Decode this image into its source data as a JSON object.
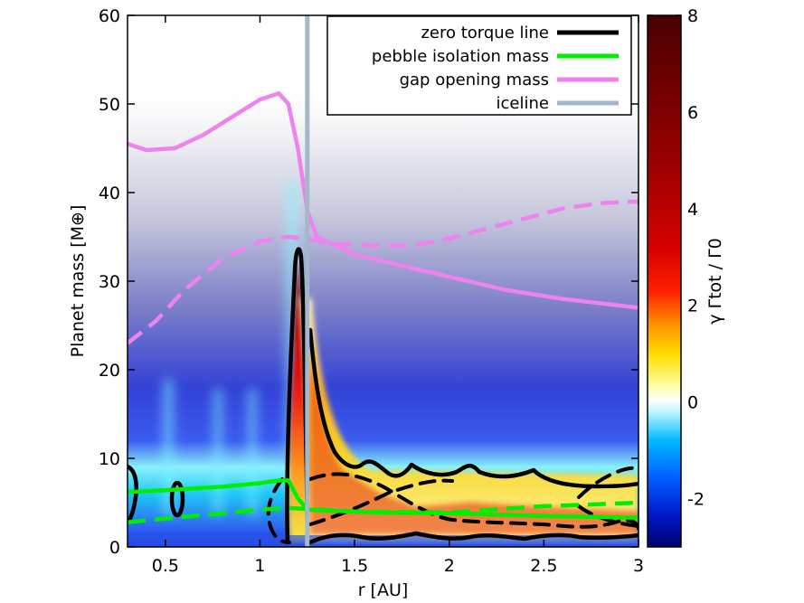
{
  "chart_data": {
    "type": "heatmap",
    "xlabel": "r [AU]",
    "ylabel": "Planet mass [M⊕]",
    "colorbar_label": "γ Γtot / Γ0",
    "xlim": [
      0.3,
      3.0
    ],
    "ylim": [
      0,
      60
    ],
    "colorbar_range": [
      -3,
      8
    ],
    "x_ticks": [
      0.5,
      1,
      1.5,
      2,
      2.5,
      3
    ],
    "x_tick_labels": [
      "0.5",
      "1",
      "1.5",
      "2",
      "2.5",
      "3"
    ],
    "y_ticks": [
      0,
      10,
      20,
      30,
      40,
      50,
      60
    ],
    "y_tick_labels": [
      "0",
      "10",
      "20",
      "30",
      "40",
      "50",
      "60"
    ],
    "colorbar_ticks": [
      -2,
      0,
      2,
      4,
      6,
      8
    ],
    "colorbar_tick_labels": [
      "-2",
      "0",
      "2",
      "4",
      "6",
      "8"
    ],
    "legend_position": "top-right",
    "colors": {
      "zero_torque": "#000000",
      "pebble_isolation": "#00ee00",
      "gap_opening": "#ee82ee",
      "iceline": "#a3b8cc"
    },
    "legend": [
      {
        "label": "zero torque line",
        "color": "#000000"
      },
      {
        "label": "pebble isolation mass",
        "color": "#00ee00"
      },
      {
        "label": "gap opening mass",
        "color": "#ee82ee"
      },
      {
        "label": "iceline",
        "color": "#a3b8cc"
      }
    ],
    "iceline_r": 1.25,
    "series": [
      {
        "name": "gap opening mass",
        "style": "solid",
        "x": [
          0.3,
          0.4,
          0.55,
          0.7,
          0.85,
          1.0,
          1.1,
          1.15,
          1.2,
          1.25,
          1.3,
          1.5,
          1.8,
          2.0,
          2.3,
          2.6,
          3.0
        ],
        "y": [
          45.5,
          44.8,
          45.0,
          46.5,
          48.5,
          50.5,
          51.2,
          50.0,
          45.0,
          38.0,
          35.0,
          33.0,
          31.5,
          30.5,
          29.0,
          28.0,
          27.0
        ]
      },
      {
        "name": "gap opening mass",
        "style": "dashed",
        "x": [
          0.3,
          0.45,
          0.6,
          0.8,
          1.0,
          1.15,
          1.25,
          1.4,
          1.6,
          1.8,
          2.0,
          2.3,
          2.6,
          2.8,
          3.0
        ],
        "y": [
          23.0,
          25.5,
          29.0,
          32.5,
          34.5,
          35.0,
          34.8,
          34.2,
          34.0,
          34.0,
          34.8,
          36.5,
          38.2,
          38.8,
          39.0
        ]
      },
      {
        "name": "pebble isolation mass",
        "style": "solid",
        "x": [
          0.3,
          0.5,
          0.8,
          1.0,
          1.1,
          1.15,
          1.2,
          1.25,
          1.35,
          1.6,
          2.0,
          2.5,
          3.0
        ],
        "y": [
          6.2,
          6.4,
          6.8,
          7.2,
          7.5,
          7.5,
          5.5,
          4.2,
          4.1,
          3.9,
          3.8,
          3.5,
          3.3
        ]
      },
      {
        "name": "pebble isolation mass",
        "style": "dashed",
        "x": [
          0.3,
          0.5,
          0.8,
          1.0,
          1.15,
          1.25,
          1.5,
          2.0,
          2.5,
          3.0
        ],
        "y": [
          2.8,
          3.2,
          3.8,
          4.2,
          4.4,
          4.3,
          4.0,
          3.9,
          4.6,
          5.0
        ]
      }
    ]
  }
}
